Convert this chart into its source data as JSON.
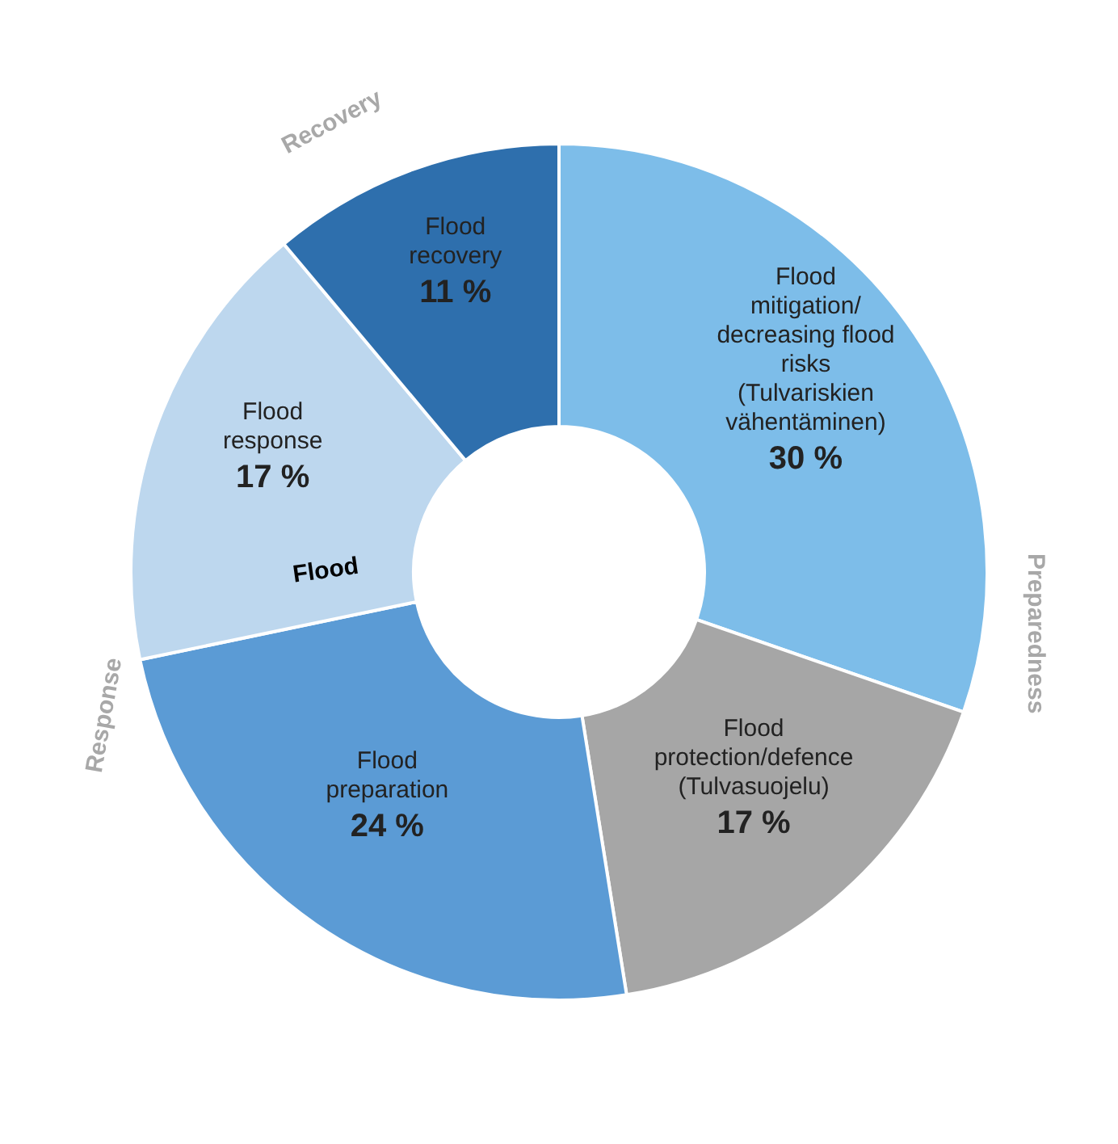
{
  "chart_data": {
    "type": "donut",
    "categories": [
      "Flood\nmitigation/\ndecreasing flood\nrisks\n(Tulvariskien\nvähentäminen)",
      "Flood\nprotection/defence\n(Tulvasuojelu)",
      "Flood\npreparation",
      "Flood\nresponse",
      "Flood\nrecovery"
    ],
    "values": [
      30,
      17,
      24,
      17,
      11
    ],
    "colors": [
      "#7dbde9",
      "#a6a6a6",
      "#5b9bd5",
      "#bdd7ee",
      "#2e6fad"
    ],
    "value_labels": [
      "30 %",
      "17 %",
      "24 %",
      "17 %",
      "11 %"
    ],
    "annotations": [
      "Recovery",
      "Preparedness",
      "Response",
      "Flood"
    ]
  }
}
